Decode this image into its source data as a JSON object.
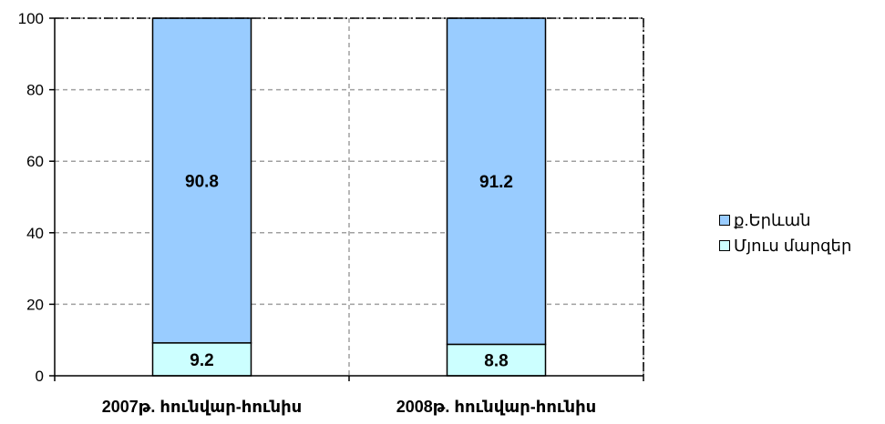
{
  "chart_data": {
    "type": "bar",
    "stacked": true,
    "categories": [
      "2007թ. հունվար-հունիս",
      "2008թ. հունվար-հունիս"
    ],
    "series": [
      {
        "name": "Մյուս մարզեր",
        "values": [
          9.2,
          8.8
        ],
        "color": "#ccffff"
      },
      {
        "name": "ք.Երևան",
        "values": [
          90.8,
          91.2
        ],
        "color": "#99ccff"
      }
    ],
    "ylim": [
      0,
      100
    ],
    "yticks": [
      "0",
      "20",
      "40",
      "60",
      "80",
      "100"
    ],
    "grid": true,
    "legend_position": "right",
    "data_labels": true
  },
  "legend": {
    "items": [
      {
        "label": "ք.Երևան",
        "color": "#99ccff"
      },
      {
        "label": "Մյուս մարզեր",
        "color": "#ccffff"
      }
    ]
  }
}
